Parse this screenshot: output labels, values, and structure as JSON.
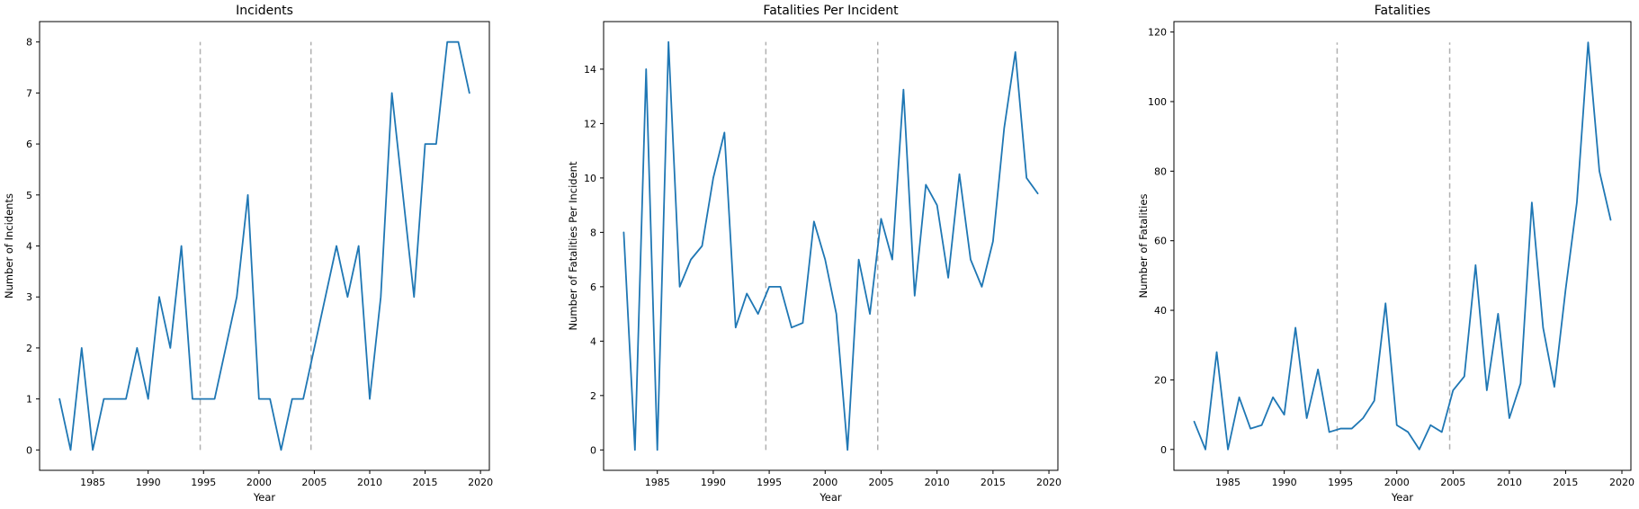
{
  "colors": {
    "series": "#1f77b4",
    "reference_line": "#b0b0b0"
  },
  "chart_data": [
    {
      "type": "line",
      "title": "Incidents",
      "xlabel": "Year",
      "ylabel": "Number of Incidents",
      "xlim": [
        1980.2,
        2020.8
      ],
      "ylim": [
        -0.4,
        8.4
      ],
      "xticks": [
        1985,
        1990,
        1995,
        2000,
        2005,
        2010,
        2015,
        2020
      ],
      "yticks": [
        0,
        1,
        2,
        3,
        4,
        5,
        6,
        7,
        8
      ],
      "reference_lines": {
        "x": [
          1994.7,
          2004.7
        ],
        "y_range": [
          0,
          8
        ],
        "style": "dashed"
      },
      "grid": false,
      "x": [
        1982,
        1983,
        1984,
        1985,
        1986,
        1987,
        1988,
        1989,
        1990,
        1991,
        1992,
        1993,
        1994,
        1995,
        1996,
        1997,
        1998,
        1999,
        2000,
        2001,
        2002,
        2003,
        2004,
        2005,
        2006,
        2007,
        2008,
        2009,
        2010,
        2011,
        2012,
        2013,
        2014,
        2015,
        2016,
        2017,
        2018,
        2019
      ],
      "series": [
        {
          "values": [
            1,
            0,
            2,
            0,
            1,
            1,
            1,
            2,
            1,
            3,
            2,
            4,
            1,
            1,
            1,
            2,
            3,
            5,
            1,
            1,
            0,
            1,
            1,
            2,
            3,
            4,
            3,
            4,
            1,
            3,
            7,
            5,
            3,
            6,
            6,
            8,
            8,
            7
          ]
        }
      ]
    },
    {
      "type": "line",
      "title": "Fatalities Per Incident",
      "xlabel": "Year",
      "ylabel": "Number of Fatalities Per Incident",
      "xlim": [
        1980.2,
        2020.8
      ],
      "ylim": [
        -0.75,
        15.75
      ],
      "xticks": [
        1985,
        1990,
        1995,
        2000,
        2005,
        2010,
        2015,
        2020
      ],
      "yticks": [
        0,
        2,
        4,
        6,
        8,
        10,
        12,
        14
      ],
      "reference_lines": {
        "x": [
          1994.7,
          2004.7
        ],
        "y_range": [
          0,
          15
        ],
        "style": "dashed"
      },
      "grid": false,
      "x": [
        1982,
        1983,
        1984,
        1985,
        1986,
        1987,
        1988,
        1989,
        1990,
        1991,
        1992,
        1993,
        1994,
        1995,
        1996,
        1997,
        1998,
        1999,
        2000,
        2001,
        2002,
        2003,
        2004,
        2005,
        2006,
        2007,
        2008,
        2009,
        2010,
        2011,
        2012,
        2013,
        2014,
        2015,
        2016,
        2017,
        2018,
        2019
      ],
      "series": [
        {
          "values": [
            8,
            0,
            14,
            0,
            15,
            6,
            7,
            7.5,
            10,
            11.67,
            4.5,
            5.75,
            5,
            6,
            6,
            4.5,
            4.67,
            8.4,
            7,
            5,
            0,
            7,
            5,
            8.5,
            7,
            13.25,
            5.67,
            9.75,
            9,
            6.33,
            10.14,
            7,
            6,
            7.67,
            11.83,
            14.63,
            10,
            9.43
          ]
        }
      ]
    },
    {
      "type": "line",
      "title": "Fatalities",
      "xlabel": "Year",
      "ylabel": "Number of Fatalities",
      "xlim": [
        1980.2,
        2020.8
      ],
      "ylim": [
        -6,
        123
      ],
      "xticks": [
        1985,
        1990,
        1995,
        2000,
        2005,
        2010,
        2015,
        2020
      ],
      "yticks": [
        0,
        20,
        40,
        60,
        80,
        100,
        120
      ],
      "reference_lines": {
        "x": [
          1994.7,
          2004.7
        ],
        "y_range": [
          0,
          117
        ],
        "style": "dashed"
      },
      "grid": false,
      "x": [
        1982,
        1983,
        1984,
        1985,
        1986,
        1987,
        1988,
        1989,
        1990,
        1991,
        1992,
        1993,
        1994,
        1995,
        1996,
        1997,
        1998,
        1999,
        2000,
        2001,
        2002,
        2003,
        2004,
        2005,
        2006,
        2007,
        2008,
        2009,
        2010,
        2011,
        2012,
        2013,
        2014,
        2015,
        2016,
        2017,
        2018,
        2019
      ],
      "series": [
        {
          "values": [
            8,
            0,
            28,
            0,
            15,
            6,
            7,
            15,
            10,
            35,
            9,
            23,
            5,
            6,
            6,
            9,
            14,
            42,
            7,
            5,
            0,
            7,
            5,
            17,
            21,
            53,
            17,
            39,
            9,
            19,
            71,
            35,
            18,
            46,
            71,
            117,
            80,
            66
          ]
        }
      ]
    }
  ]
}
